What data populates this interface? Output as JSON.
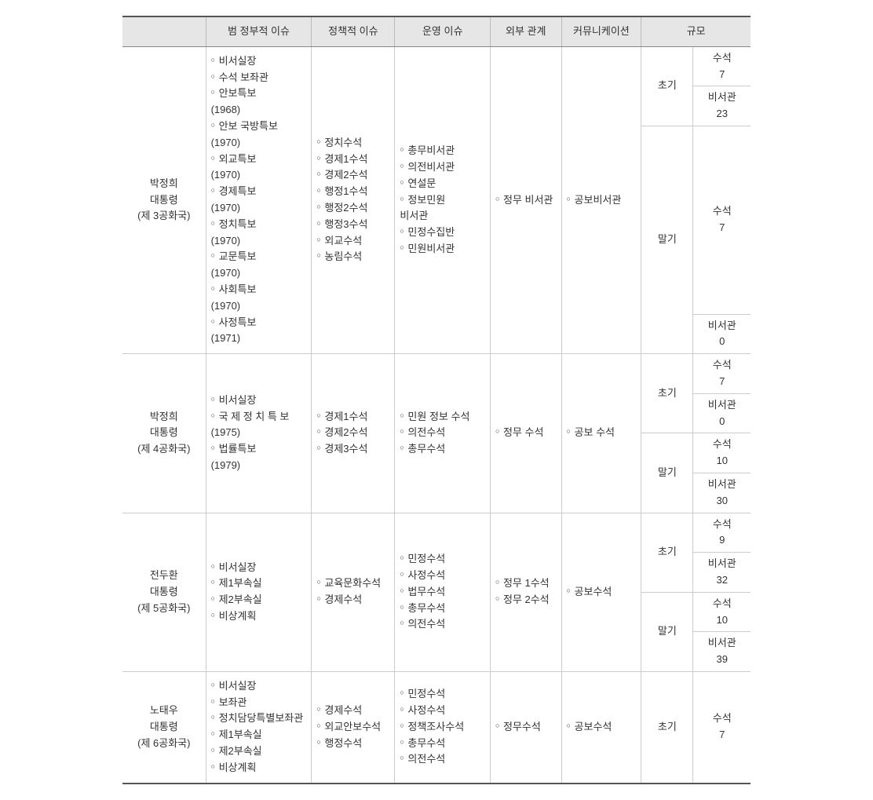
{
  "headers": {
    "blank": "",
    "pan_gov": "범 정부적 이슈",
    "policy": "정책적 이슈",
    "operations": "운영 이슈",
    "external": "외부 관계",
    "comm": "커뮤니케이션",
    "scale": "규모"
  },
  "stage_labels": {
    "early": "초기",
    "late": "말기"
  },
  "scale_labels": {
    "senior": "수석",
    "secretary": "비서관"
  },
  "presidents": [
    {
      "id": "park3",
      "name": "박정희",
      "title": "대통령",
      "republic": "(제 3공화국)",
      "pan_gov": [
        {
          "t": "비서실장"
        },
        {
          "t": "수석 보좌관"
        },
        {
          "t": "안보특보"
        },
        {
          "y": "(1968)"
        },
        {
          "t": "안보 국방특보"
        },
        {
          "y": "(1970)"
        },
        {
          "t": "외교특보"
        },
        {
          "y": "(1970)"
        },
        {
          "t": "경제특보"
        },
        {
          "y": "(1970)"
        },
        {
          "t": "정치특보"
        },
        {
          "y": "(1970)"
        },
        {
          "t": "교문특보"
        },
        {
          "y": "(1970)"
        },
        {
          "t": "사회특보"
        },
        {
          "y": "(1970)"
        },
        {
          "t": "사정특보"
        },
        {
          "y": "(1971)"
        }
      ],
      "policy": [
        {
          "t": "정치수석"
        },
        {
          "t": "경제1수석"
        },
        {
          "t": "경제2수석"
        },
        {
          "t": "행정1수석"
        },
        {
          "t": "행정2수석"
        },
        {
          "t": "행정3수석"
        },
        {
          "t": "외교수석"
        },
        {
          "t": "농림수석"
        }
      ],
      "operations": [
        {
          "t": "총무비서관"
        },
        {
          "t": "의전비서관"
        },
        {
          "t": "연설문"
        },
        {
          "t": "정보민원",
          "wrap": true
        },
        {
          "t2": "비서관"
        },
        {
          "t": "민정수집반"
        },
        {
          "t": "민원비서관"
        }
      ],
      "external": [
        {
          "t": "정무 비서관"
        }
      ],
      "comm": [
        {
          "t": "공보비서관"
        }
      ],
      "scale": {
        "early": {
          "senior": 7,
          "secretary": 23
        },
        "late": {
          "senior": 7,
          "secretary": 0
        }
      }
    },
    {
      "id": "park4",
      "name": "박정희",
      "title": "대통령",
      "republic": "(제 4공화국)",
      "pan_gov": [
        {
          "t": "비서실장"
        },
        {
          "t": "국 제 정 치 특 보",
          "wrap": true
        },
        {
          "y": "(1975)"
        },
        {
          "t": "법률특보"
        },
        {
          "y": "(1979)"
        }
      ],
      "policy": [
        {
          "t": "경제1수석"
        },
        {
          "t": "경제2수석"
        },
        {
          "t": "경제3수석"
        }
      ],
      "operations": [
        {
          "t": "민원 정보 수석"
        },
        {
          "t": "의전수석"
        },
        {
          "t": "총무수석"
        }
      ],
      "external": [
        {
          "t": "정무 수석"
        }
      ],
      "comm": [
        {
          "t": "공보 수석"
        }
      ],
      "scale": {
        "early": {
          "senior": 7,
          "secretary": 0
        },
        "late": {
          "senior": 10,
          "secretary": 30
        }
      }
    },
    {
      "id": "chun5",
      "name": "전두환",
      "title": "대통령",
      "republic": "(제 5공화국)",
      "pan_gov": [
        {
          "t": "비서실장"
        },
        {
          "t": "제1부속실"
        },
        {
          "t": "제2부속실"
        },
        {
          "t": "비상계획"
        }
      ],
      "policy": [
        {
          "t": "교육문화수석"
        },
        {
          "t": "경제수석"
        }
      ],
      "operations": [
        {
          "t": "민정수석"
        },
        {
          "t": "사정수석"
        },
        {
          "t": "법무수석"
        },
        {
          "t": "총무수석"
        },
        {
          "t": "의전수석"
        }
      ],
      "external": [
        {
          "t": "정무 1수석"
        },
        {
          "t": "정무 2수석"
        }
      ],
      "comm": [
        {
          "t": "공보수석"
        }
      ],
      "scale": {
        "early": {
          "senior": 9,
          "secretary": 32
        },
        "late": {
          "senior": 10,
          "secretary": 39
        }
      }
    },
    {
      "id": "roh6",
      "name": "노태우",
      "title": "대통령",
      "republic": "(제 6공화국)",
      "pan_gov": [
        {
          "t": "비서실장"
        },
        {
          "t": "보좌관"
        },
        {
          "t": "정치담당특별보좌관"
        },
        {
          "t": "제1부속실"
        },
        {
          "t": "제2부속실"
        },
        {
          "t": "비상계획"
        }
      ],
      "policy": [
        {
          "t": "경제수석"
        },
        {
          "t": "외교안보수석"
        },
        {
          "t": "행정수석"
        }
      ],
      "operations": [
        {
          "t": "민정수석"
        },
        {
          "t": "사정수석"
        },
        {
          "t": "정책조사수석"
        },
        {
          "t": "총무수석"
        },
        {
          "t": "의전수석"
        }
      ],
      "external": [
        {
          "t": "정무수석"
        }
      ],
      "comm": [
        {
          "t": "공보수석"
        }
      ],
      "scale_single": {
        "label": "초기",
        "senior": 7
      }
    }
  ]
}
